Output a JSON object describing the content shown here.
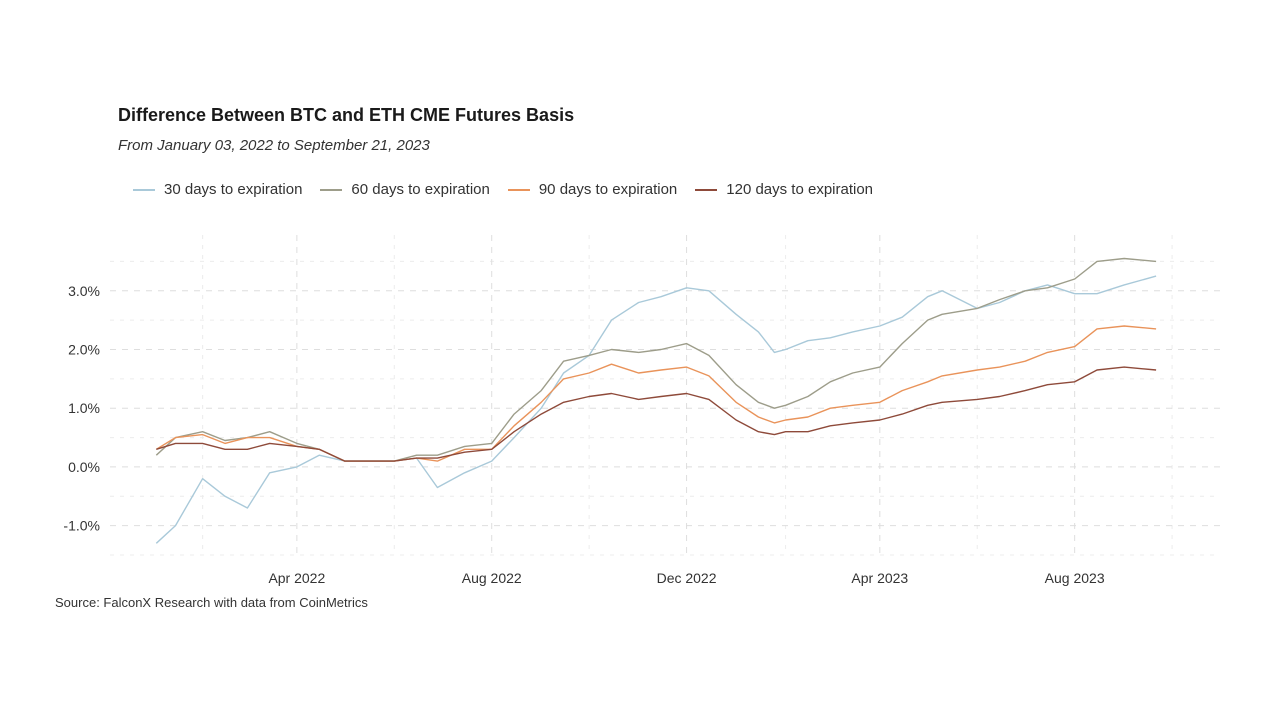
{
  "chart_data": {
    "type": "line",
    "title": "Difference Between BTC and ETH CME Futures Basis",
    "subtitle": "From January 03, 2022 to September 21, 2023",
    "source": "Source: FalconX Research with data from CoinMetrics",
    "xlabel": "",
    "ylabel": "",
    "x_ticks": [
      {
        "date": "2022-04-01",
        "label": "Apr 2022"
      },
      {
        "date": "2022-08-01",
        "label": "Aug 2022"
      },
      {
        "date": "2022-12-01",
        "label": "Dec 2022"
      },
      {
        "date": "2023-04-01",
        "label": "Apr 2023"
      },
      {
        "date": "2023-08-01",
        "label": "Aug 2023"
      }
    ],
    "y_ticks": [
      {
        "value": -1,
        "label": "-1.0%"
      },
      {
        "value": 0,
        "label": "0.0%"
      },
      {
        "value": 1,
        "label": "1.0%"
      },
      {
        "value": 2,
        "label": "2.0%"
      },
      {
        "value": 3,
        "label": "3.0%"
      }
    ],
    "xlim": [
      "2021-12-05",
      "2023-10-31"
    ],
    "ylim": [
      -1.5,
      3.95
    ],
    "grid": true,
    "legend_position": "top",
    "x": [
      "2022-01-03",
      "2022-01-15",
      "2022-02-01",
      "2022-02-15",
      "2022-03-01",
      "2022-03-15",
      "2022-04-01",
      "2022-04-15",
      "2022-05-01",
      "2022-06-01",
      "2022-06-15",
      "2022-06-28",
      "2022-07-15",
      "2022-08-01",
      "2022-08-15",
      "2022-09-01",
      "2022-09-15",
      "2022-10-01",
      "2022-10-15",
      "2022-11-01",
      "2022-11-15",
      "2022-12-01",
      "2022-12-15",
      "2023-01-01",
      "2023-01-15",
      "2023-01-25",
      "2023-02-01",
      "2023-02-15",
      "2023-03-01",
      "2023-03-15",
      "2023-04-01",
      "2023-04-15",
      "2023-05-01",
      "2023-05-10",
      "2023-06-01",
      "2023-06-15",
      "2023-07-01",
      "2023-07-15",
      "2023-08-01",
      "2023-08-15",
      "2023-09-01",
      "2023-09-21"
    ],
    "series": [
      {
        "name": "30 days to expiration",
        "color": "#a9c9d9",
        "values": [
          -1.3,
          -1.0,
          -0.2,
          -0.5,
          -0.7,
          -0.1,
          0.0,
          0.2,
          0.1,
          0.1,
          0.15,
          -0.35,
          -0.1,
          0.1,
          0.5,
          1.0,
          1.6,
          1.9,
          2.5,
          2.8,
          2.9,
          3.05,
          3.0,
          2.6,
          2.3,
          1.95,
          2.0,
          2.15,
          2.2,
          2.3,
          2.4,
          2.55,
          2.9,
          3.0,
          2.7,
          2.8,
          3.0,
          3.1,
          2.95,
          2.95,
          3.1,
          3.25
        ]
      },
      {
        "name": "60 days to expiration",
        "color": "#9d9d8a",
        "values": [
          0.2,
          0.5,
          0.6,
          0.45,
          0.5,
          0.6,
          0.4,
          0.3,
          0.1,
          0.1,
          0.2,
          0.2,
          0.35,
          0.4,
          0.9,
          1.3,
          1.8,
          1.9,
          2.0,
          1.95,
          2.0,
          2.1,
          1.9,
          1.4,
          1.1,
          1.0,
          1.05,
          1.2,
          1.45,
          1.6,
          1.7,
          2.1,
          2.5,
          2.6,
          2.7,
          2.85,
          3.0,
          3.05,
          3.2,
          3.5,
          3.55,
          3.5
        ]
      },
      {
        "name": "90 days to expiration",
        "color": "#e9935a",
        "values": [
          0.3,
          0.5,
          0.55,
          0.4,
          0.5,
          0.5,
          0.35,
          0.3,
          0.1,
          0.1,
          0.15,
          0.1,
          0.3,
          0.3,
          0.7,
          1.1,
          1.5,
          1.6,
          1.75,
          1.6,
          1.65,
          1.7,
          1.55,
          1.1,
          0.85,
          0.75,
          0.8,
          0.85,
          1.0,
          1.05,
          1.1,
          1.3,
          1.45,
          1.55,
          1.65,
          1.7,
          1.8,
          1.95,
          2.05,
          2.35,
          2.4,
          2.35
        ]
      },
      {
        "name": "120 days to expiration",
        "color": "#8e4a3a",
        "values": [
          0.3,
          0.4,
          0.4,
          0.3,
          0.3,
          0.4,
          0.35,
          0.3,
          0.1,
          0.1,
          0.15,
          0.15,
          0.25,
          0.3,
          0.6,
          0.9,
          1.1,
          1.2,
          1.25,
          1.15,
          1.2,
          1.25,
          1.15,
          0.8,
          0.6,
          0.55,
          0.6,
          0.6,
          0.7,
          0.75,
          0.8,
          0.9,
          1.05,
          1.1,
          1.15,
          1.2,
          1.3,
          1.4,
          1.45,
          1.65,
          1.7,
          1.65
        ]
      }
    ]
  }
}
